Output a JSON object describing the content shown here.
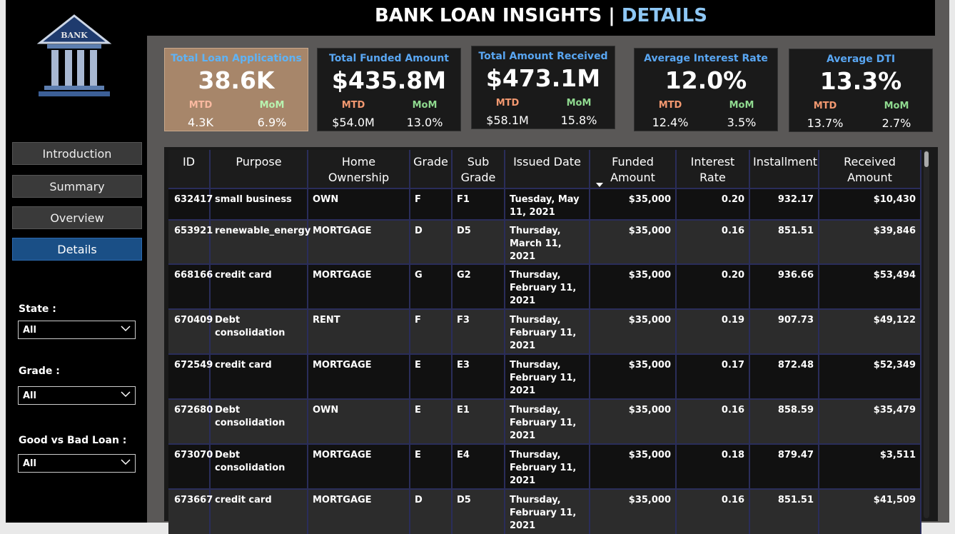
{
  "header": {
    "title_main": "BANK LOAN INSIGHTS | ",
    "title_accent": "DETAILS"
  },
  "logo": {
    "text": "BANK"
  },
  "nav": [
    {
      "label": "Introduction"
    },
    {
      "label": "Summary"
    },
    {
      "label": "Overview"
    },
    {
      "label": "Details",
      "active": true
    }
  ],
  "filters": [
    {
      "label": "State :",
      "value": "All"
    },
    {
      "label": "Grade :",
      "value": "All"
    },
    {
      "label": "Good vs Bad Loan :",
      "value": "All"
    }
  ],
  "kpis": [
    {
      "title": "Total Loan Applications",
      "value": "38.6K",
      "mtd_label": "MTD",
      "mom_label": "MoM",
      "mtd": "4.3K",
      "mom": "6.9%"
    },
    {
      "title": "Total Funded Amount",
      "value": "$435.8M",
      "mtd_label": "MTD",
      "mom_label": "MoM",
      "mtd": "$54.0M",
      "mom": "13.0%"
    },
    {
      "title": "Total Amount Received",
      "value": "$473.1M",
      "mtd_label": "MTD",
      "mom_label": "MoM",
      "mtd": "$58.1M",
      "mom": "15.8%"
    },
    {
      "title": "Average Interest Rate",
      "value": "12.0%",
      "mtd_label": "MTD",
      "mom_label": "MoM",
      "mtd": "12.4%",
      "mom": "3.5%"
    },
    {
      "title": "Average DTI",
      "value": "13.3%",
      "mtd_label": "MTD",
      "mom_label": "MoM",
      "mtd": "13.7%",
      "mom": "2.7%"
    }
  ],
  "table": {
    "columns": [
      "ID",
      "Purpose",
      "Home Ownership",
      "Grade",
      "Sub Grade",
      "Issued Date",
      "Funded Amount",
      "Interest Rate",
      "Installment",
      "Received Amount"
    ],
    "rows": [
      [
        "632417",
        "small business",
        "OWN",
        "F",
        "F1",
        "Tuesday, May 11, 2021",
        "$35,000",
        "0.20",
        "932.17",
        "$10,430"
      ],
      [
        "653921",
        "renewable_energy",
        "MORTGAGE",
        "D",
        "D5",
        "Thursday, March 11, 2021",
        "$35,000",
        "0.16",
        "851.51",
        "$39,846"
      ],
      [
        "668166",
        "credit card",
        "MORTGAGE",
        "G",
        "G2",
        "Thursday, February 11, 2021",
        "$35,000",
        "0.20",
        "936.66",
        "$53,494"
      ],
      [
        "670409",
        "Debt consolidation",
        "RENT",
        "F",
        "F3",
        "Thursday, February 11, 2021",
        "$35,000",
        "0.19",
        "907.73",
        "$49,122"
      ],
      [
        "672549",
        "credit card",
        "MORTGAGE",
        "E",
        "E3",
        "Thursday, February 11, 2021",
        "$35,000",
        "0.17",
        "872.48",
        "$52,349"
      ],
      [
        "672680",
        "Debt consolidation",
        "OWN",
        "E",
        "E1",
        "Thursday, February 11, 2021",
        "$35,000",
        "0.16",
        "858.59",
        "$35,479"
      ],
      [
        "673070",
        "Debt consolidation",
        "MORTGAGE",
        "E",
        "E4",
        "Thursday, February 11, 2021",
        "$35,000",
        "0.18",
        "879.47",
        "$3,511"
      ],
      [
        "673667",
        "credit card",
        "MORTGAGE",
        "D",
        "D5",
        "Thursday, February 11, 2021",
        "$35,000",
        "0.16",
        "851.51",
        "$41,509"
      ]
    ]
  },
  "colors": {
    "accent_blue": "#59a6f2",
    "mtd": "#f29870",
    "mom": "#8fd98f",
    "active_nav": "#1a4f86"
  }
}
